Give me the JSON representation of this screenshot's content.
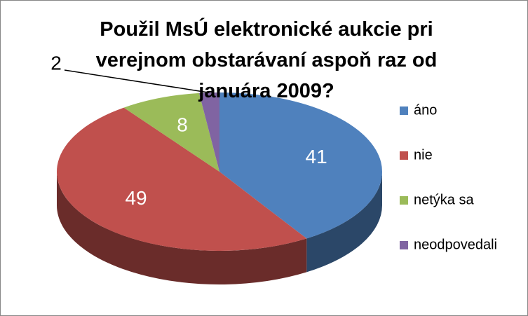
{
  "chart_data": {
    "type": "pie3d",
    "title": "Použil MsÚ elektronické aukcie pri verejnom obstarávaní aspoň raz od januára 2009?",
    "categories": [
      "áno",
      "nie",
      "netýka sa",
      "neodpovedali"
    ],
    "values": [
      41,
      49,
      8,
      2
    ],
    "colors": [
      "#4f81bd",
      "#c0504d",
      "#9bbb59",
      "#8064a2"
    ],
    "legend": "right"
  }
}
